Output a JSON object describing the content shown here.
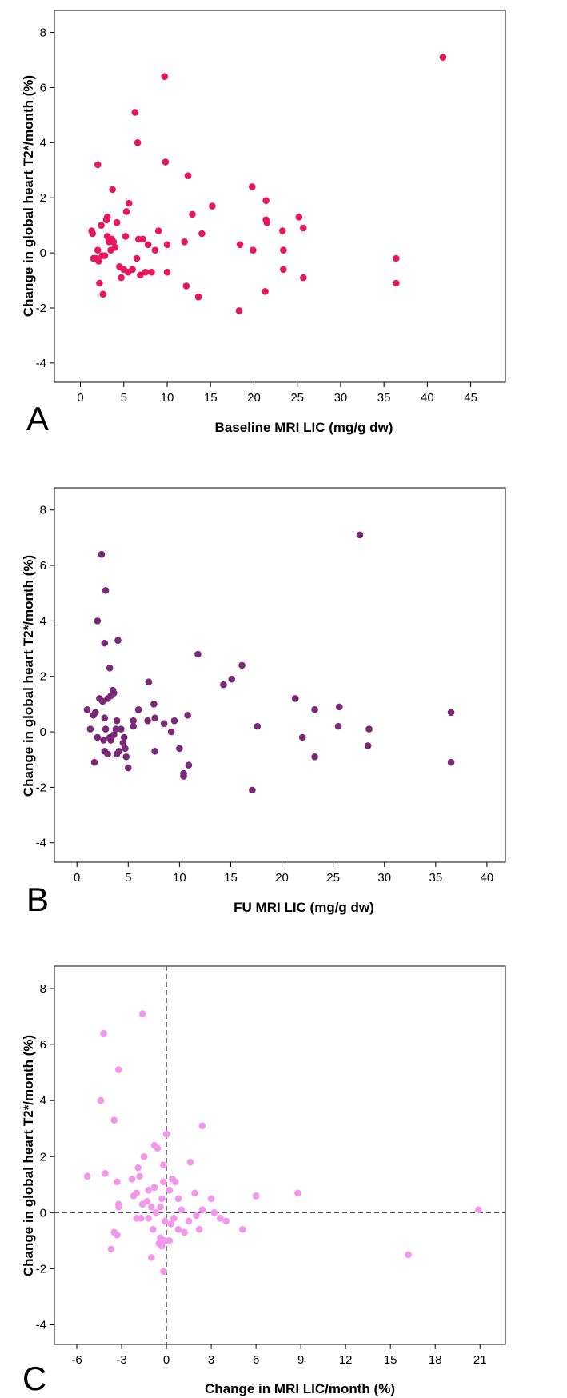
{
  "chart_data": [
    {
      "type": "scatter",
      "panel_label": "A",
      "xlabel": "Baseline MRI LIC (mg/g dw)",
      "ylabel": "Change in global heart T2*/month (%)",
      "xlim": [
        -3,
        49
      ],
      "ylim": [
        -4.7,
        8.8
      ],
      "xticks": [
        0,
        5,
        10,
        15,
        20,
        25,
        30,
        35,
        40,
        45
      ],
      "yticks": [
        -4,
        -2,
        0,
        2,
        4,
        6,
        8
      ],
      "color": "#e8175d",
      "reference_lines": [],
      "points": [
        [
          1.3,
          0.8
        ],
        [
          1.4,
          0.7
        ],
        [
          1.5,
          -0.2
        ],
        [
          1.8,
          -0.2
        ],
        [
          2.0,
          3.2
        ],
        [
          2.0,
          0.1
        ],
        [
          2.1,
          -0.3
        ],
        [
          2.2,
          -1.1
        ],
        [
          2.4,
          1.0
        ],
        [
          2.5,
          -0.1
        ],
        [
          2.6,
          -1.5
        ],
        [
          2.8,
          -0.1
        ],
        [
          3.0,
          1.2
        ],
        [
          3.1,
          1.3
        ],
        [
          3.1,
          0.6
        ],
        [
          3.3,
          0.4
        ],
        [
          3.5,
          0.1
        ],
        [
          3.6,
          0.5
        ],
        [
          3.7,
          2.3
        ],
        [
          3.8,
          0.4
        ],
        [
          4.0,
          0.2
        ],
        [
          4.2,
          1.1
        ],
        [
          4.5,
          -0.5
        ],
        [
          4.7,
          -0.9
        ],
        [
          5.0,
          -0.6
        ],
        [
          5.2,
          0.6
        ],
        [
          5.3,
          1.5
        ],
        [
          5.5,
          -0.7
        ],
        [
          5.6,
          1.8
        ],
        [
          6.0,
          -0.6
        ],
        [
          6.3,
          5.1
        ],
        [
          6.5,
          -0.2
        ],
        [
          6.6,
          4.0
        ],
        [
          6.7,
          0.5
        ],
        [
          6.9,
          -0.8
        ],
        [
          7.2,
          0.5
        ],
        [
          7.5,
          -0.7
        ],
        [
          7.8,
          0.3
        ],
        [
          8.2,
          -0.7
        ],
        [
          8.6,
          0.1
        ],
        [
          9.0,
          0.8
        ],
        [
          9.7,
          6.4
        ],
        [
          9.8,
          3.3
        ],
        [
          10.0,
          -0.7
        ],
        [
          10.0,
          0.3
        ],
        [
          12.0,
          0.4
        ],
        [
          12.2,
          -1.2
        ],
        [
          12.4,
          2.8
        ],
        [
          12.9,
          1.4
        ],
        [
          13.6,
          -1.6
        ],
        [
          14.0,
          0.7
        ],
        [
          15.2,
          1.7
        ],
        [
          18.3,
          -2.1
        ],
        [
          18.4,
          0.3
        ],
        [
          19.8,
          2.4
        ],
        [
          19.9,
          0.1
        ],
        [
          21.3,
          -1.4
        ],
        [
          21.4,
          1.9
        ],
        [
          21.4,
          1.2
        ],
        [
          21.5,
          1.1
        ],
        [
          23.3,
          0.8
        ],
        [
          23.4,
          -0.6
        ],
        [
          23.4,
          0.1
        ],
        [
          25.2,
          1.3
        ],
        [
          25.7,
          0.9
        ],
        [
          25.7,
          -0.9
        ],
        [
          36.4,
          -0.2
        ],
        [
          36.4,
          -1.1
        ],
        [
          41.8,
          7.1
        ]
      ]
    },
    {
      "type": "scatter",
      "panel_label": "B",
      "xlabel": "FU MRI LIC (mg/g dw)",
      "ylabel": "Change in global heart T2*/month (%)",
      "xlim": [
        -2.2,
        41.8
      ],
      "ylim": [
        -4.7,
        8.8
      ],
      "xticks": [
        0,
        5,
        10,
        15,
        20,
        25,
        30,
        35,
        40
      ],
      "yticks": [
        -4,
        -2,
        0,
        2,
        4,
        6,
        8
      ],
      "color": "#7b2878",
      "reference_lines": [],
      "points": [
        [
          1.0,
          0.8
        ],
        [
          1.3,
          0.1
        ],
        [
          1.6,
          0.6
        ],
        [
          1.7,
          -1.1
        ],
        [
          1.8,
          0.7
        ],
        [
          2.0,
          4.0
        ],
        [
          2.0,
          -0.2
        ],
        [
          2.2,
          1.2
        ],
        [
          2.4,
          6.4
        ],
        [
          2.5,
          1.1
        ],
        [
          2.6,
          -0.3
        ],
        [
          2.7,
          -0.7
        ],
        [
          2.7,
          3.2
        ],
        [
          2.7,
          0.5
        ],
        [
          2.8,
          5.1
        ],
        [
          2.8,
          0.1
        ],
        [
          3.0,
          -0.8
        ],
        [
          3.0,
          1.2
        ],
        [
          3.2,
          -0.2
        ],
        [
          3.2,
          2.3
        ],
        [
          3.3,
          1.3
        ],
        [
          3.3,
          -0.3
        ],
        [
          3.5,
          1.5
        ],
        [
          3.6,
          1.4
        ],
        [
          3.6,
          -0.1
        ],
        [
          3.8,
          0.1
        ],
        [
          3.9,
          -0.8
        ],
        [
          3.9,
          0.4
        ],
        [
          4.0,
          3.3
        ],
        [
          4.1,
          -0.7
        ],
        [
          4.3,
          0.1
        ],
        [
          4.5,
          -0.4
        ],
        [
          4.6,
          -0.2
        ],
        [
          4.7,
          -0.6
        ],
        [
          4.8,
          -0.9
        ],
        [
          5.0,
          -1.3
        ],
        [
          5.5,
          0.4
        ],
        [
          5.5,
          0.2
        ],
        [
          6.0,
          0.8
        ],
        [
          6.9,
          0.4
        ],
        [
          7.0,
          1.8
        ],
        [
          7.5,
          1.0
        ],
        [
          7.6,
          0.5
        ],
        [
          7.6,
          -0.7
        ],
        [
          8.5,
          0.3
        ],
        [
          9.2,
          0.0
        ],
        [
          9.5,
          0.4
        ],
        [
          10.0,
          -0.6
        ],
        [
          10.4,
          -1.5
        ],
        [
          10.4,
          -1.6
        ],
        [
          10.8,
          0.6
        ],
        [
          10.9,
          -1.2
        ],
        [
          11.8,
          2.8
        ],
        [
          14.3,
          1.7
        ],
        [
          15.1,
          1.9
        ],
        [
          16.1,
          2.4
        ],
        [
          17.1,
          -2.1
        ],
        [
          17.6,
          0.2
        ],
        [
          21.3,
          1.2
        ],
        [
          22.0,
          -0.2
        ],
        [
          23.2,
          0.8
        ],
        [
          23.2,
          -0.9
        ],
        [
          25.5,
          0.2
        ],
        [
          25.6,
          0.9
        ],
        [
          27.6,
          7.1
        ],
        [
          28.4,
          -0.5
        ],
        [
          28.5,
          0.1
        ],
        [
          36.5,
          0.7
        ],
        [
          36.5,
          -1.1
        ]
      ]
    },
    {
      "type": "scatter",
      "panel_label": "C",
      "xlabel": "Change in MRI LIC/month (%)",
      "ylabel": "Change in global heart T2*/month (%)",
      "xlim": [
        -7.5,
        22.7
      ],
      "ylim": [
        -4.7,
        8.8
      ],
      "xticks": [
        -6,
        -3,
        0,
        3,
        6,
        9,
        12,
        15,
        18,
        21
      ],
      "yticks": [
        -4,
        -2,
        0,
        2,
        4,
        6,
        8
      ],
      "color": "#f397ed",
      "reference_lines": [
        {
          "axis": "x",
          "value": 0
        },
        {
          "axis": "y",
          "value": 0
        }
      ],
      "points": [
        [
          -5.3,
          1.3
        ],
        [
          -4.4,
          4.0
        ],
        [
          -4.2,
          6.4
        ],
        [
          -4.1,
          1.4
        ],
        [
          -3.7,
          -1.3
        ],
        [
          -3.5,
          3.3
        ],
        [
          -3.5,
          -0.7
        ],
        [
          -3.3,
          -0.8
        ],
        [
          -3.3,
          1.1
        ],
        [
          -3.2,
          5.1
        ],
        [
          -3.2,
          0.3
        ],
        [
          -3.2,
          0.2
        ],
        [
          -2.3,
          1.2
        ],
        [
          -2.2,
          0.6
        ],
        [
          -2.0,
          -0.2
        ],
        [
          -2.0,
          0.7
        ],
        [
          -1.9,
          1.6
        ],
        [
          -1.8,
          1.3
        ],
        [
          -1.7,
          -0.2
        ],
        [
          -1.6,
          7.1
        ],
        [
          -1.6,
          0.3
        ],
        [
          -1.5,
          2.0
        ],
        [
          -1.3,
          0.4
        ],
        [
          -1.2,
          0.8
        ],
        [
          -1.2,
          -0.2
        ],
        [
          -1.0,
          -1.6
        ],
        [
          -1.0,
          0.2
        ],
        [
          -0.9,
          -0.6
        ],
        [
          -0.8,
          0.9
        ],
        [
          -0.8,
          2.4
        ],
        [
          -0.7,
          0.0
        ],
        [
          -0.6,
          2.3
        ],
        [
          -0.5,
          -1.1
        ],
        [
          -0.4,
          0.2
        ],
        [
          -0.4,
          -0.9
        ],
        [
          -0.3,
          -1.2
        ],
        [
          -0.3,
          0.5
        ],
        [
          -0.2,
          1.7
        ],
        [
          -0.2,
          1.1
        ],
        [
          -0.2,
          -2.1
        ],
        [
          -0.1,
          -1.0
        ],
        [
          -0.1,
          -0.3
        ],
        [
          0.0,
          2.8
        ],
        [
          0.2,
          -1.0
        ],
        [
          0.2,
          0.8
        ],
        [
          0.3,
          -0.4
        ],
        [
          0.4,
          1.2
        ],
        [
          0.5,
          -0.2
        ],
        [
          0.6,
          1.1
        ],
        [
          0.8,
          -0.6
        ],
        [
          0.8,
          0.5
        ],
        [
          1.0,
          0.1
        ],
        [
          1.2,
          -0.7
        ],
        [
          1.5,
          -0.3
        ],
        [
          1.6,
          1.8
        ],
        [
          1.9,
          0.7
        ],
        [
          2.0,
          -0.1
        ],
        [
          2.2,
          -0.6
        ],
        [
          2.4,
          3.1
        ],
        [
          2.4,
          0.1
        ],
        [
          3.0,
          0.5
        ],
        [
          3.2,
          0.0
        ],
        [
          3.6,
          -0.2
        ],
        [
          4.0,
          -0.3
        ],
        [
          5.1,
          -0.6
        ],
        [
          6.0,
          0.6
        ],
        [
          8.8,
          0.7
        ],
        [
          16.2,
          -1.5
        ],
        [
          20.9,
          0.1
        ]
      ]
    }
  ]
}
